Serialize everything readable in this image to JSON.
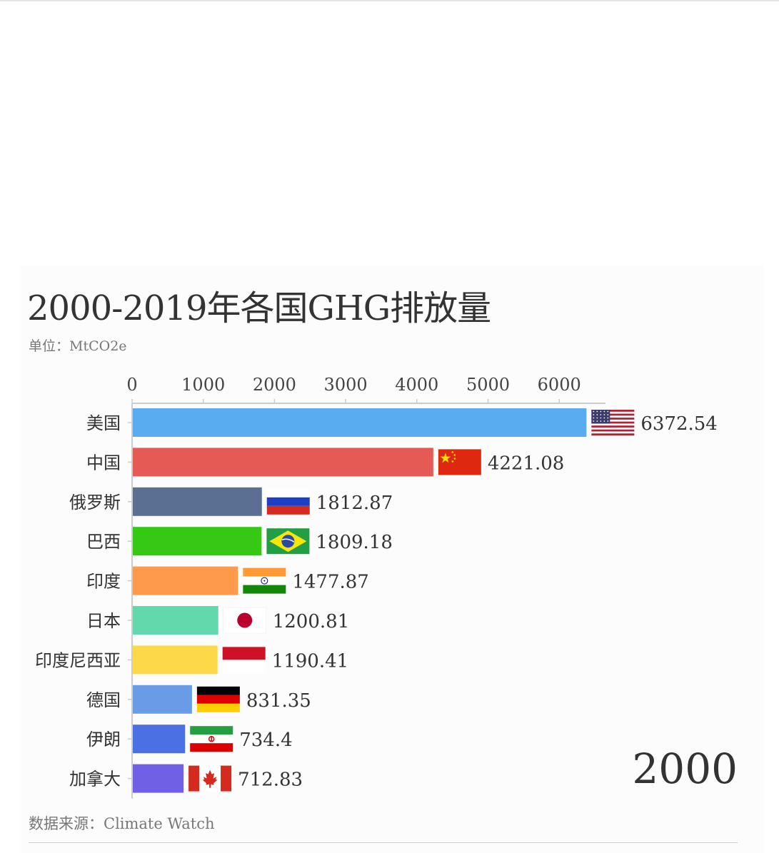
{
  "title": "2000-2019年各国GHG排放量",
  "subtitle": "单位：MtCO2e",
  "source": "数据来源：Climate Watch",
  "chart_data": {
    "type": "bar",
    "orientation": "horizontal",
    "year": "2000",
    "xlim": [
      0,
      6650
    ],
    "ticks": [
      0,
      1000,
      2000,
      3000,
      4000,
      5000,
      6000
    ],
    "tick_position": "top",
    "bars": [
      {
        "name": "美国",
        "value": 6372.54,
        "label": "6372.54",
        "color": "#5aacf0",
        "flag": "us-flag-icon"
      },
      {
        "name": "中国",
        "value": 4221.08,
        "label": "4221.08",
        "color": "#e55a55",
        "flag": "china-flag-icon"
      },
      {
        "name": "俄罗斯",
        "value": 1812.87,
        "label": "1812.87",
        "color": "#5b6f92",
        "flag": "russia-flag-icon"
      },
      {
        "name": "巴西",
        "value": 1809.18,
        "label": "1809.18",
        "color": "#35c916",
        "flag": "brazil-flag-icon"
      },
      {
        "name": "印度",
        "value": 1477.87,
        "label": "1477.87",
        "color": "#fd9a4c",
        "flag": "india-flag-icon"
      },
      {
        "name": "日本",
        "value": 1200.81,
        "label": "1200.81",
        "color": "#62d8ac",
        "flag": "japan-flag-icon"
      },
      {
        "name": "印度尼西亚",
        "value": 1190.41,
        "label": "1190.41",
        "color": "#fdd94a",
        "flag": "indonesia-flag-icon"
      },
      {
        "name": "德国",
        "value": 831.35,
        "label": "831.35",
        "color": "#6a9be6",
        "flag": "germany-flag-icon"
      },
      {
        "name": "伊朗",
        "value": 734.4,
        "label": "734.4",
        "color": "#4a70e3",
        "flag": "iran-flag-icon"
      },
      {
        "name": "加拿大",
        "value": 712.83,
        "label": "712.83",
        "color": "#6f60e6",
        "flag": "canada-flag-icon"
      }
    ],
    "colors": {
      "axis": "#cccccc",
      "text": "#333333"
    }
  }
}
